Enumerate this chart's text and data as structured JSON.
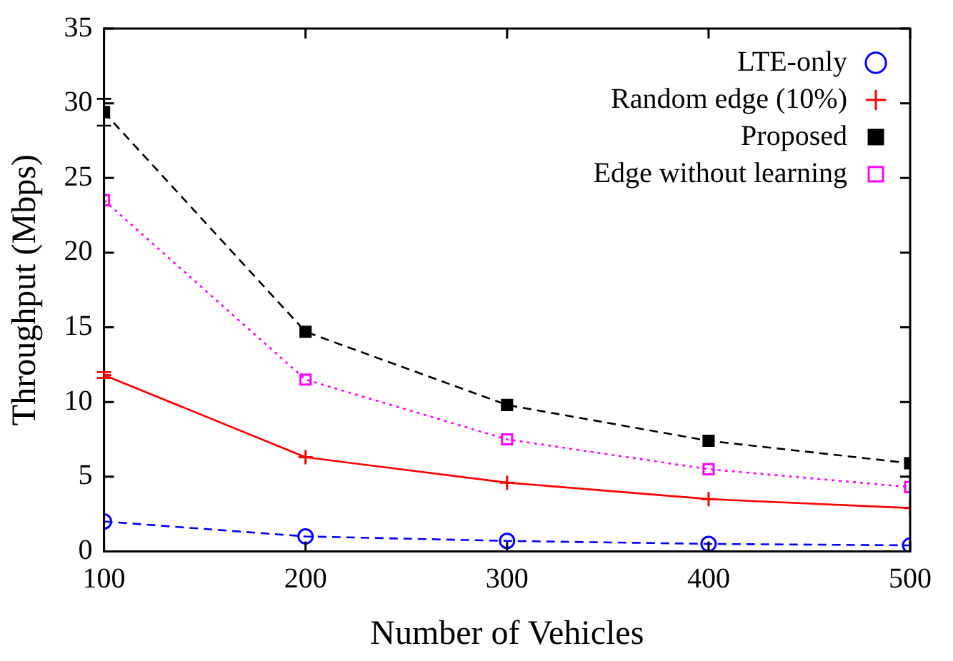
{
  "chart_data": {
    "type": "line",
    "xlabel": "Number of Vehicles",
    "ylabel": "Throughput (Mbps)",
    "x": [
      100,
      200,
      300,
      400,
      500
    ],
    "xlim": [
      100,
      500
    ],
    "xticks": [
      100,
      200,
      300,
      400,
      500
    ],
    "ylim": [
      0,
      35
    ],
    "yticks": [
      0,
      5,
      10,
      15,
      20,
      25,
      30,
      35
    ],
    "grid": false,
    "legend": "top right",
    "series": [
      {
        "name": "LTE-only",
        "color": "#0000ff",
        "marker": "circle",
        "line_style": "dashed",
        "values": [
          2.0,
          1.0,
          0.7,
          0.5,
          0.4
        ]
      },
      {
        "name": "Random edge (10%)",
        "color": "#ff0000",
        "marker": "cross",
        "line_style": "solid",
        "values": [
          11.8,
          6.3,
          4.6,
          3.5,
          2.9
        ],
        "errors": [
          0.2,
          null,
          null,
          null,
          null
        ]
      },
      {
        "name": "Proposed",
        "color": "#000000",
        "marker": "square",
        "line_style": "dashed",
        "values": [
          29.4,
          14.7,
          9.8,
          7.4,
          5.9
        ],
        "errors": [
          0.9,
          null,
          null,
          null,
          null
        ]
      },
      {
        "name": "Edge without learning",
        "color": "#ff00ff",
        "marker": "square",
        "line_style": "dotted",
        "values": [
          23.5,
          11.5,
          7.5,
          5.5,
          4.3
        ]
      }
    ]
  }
}
